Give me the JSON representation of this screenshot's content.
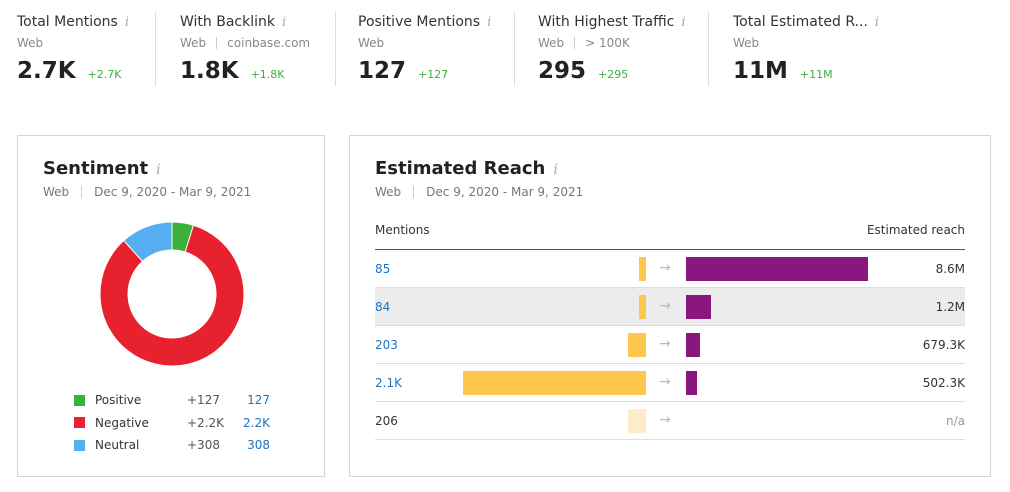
{
  "metrics": [
    {
      "title": "Total Mentions",
      "sub": [
        "Web"
      ],
      "value": "2.7K",
      "delta": "+2.7K"
    },
    {
      "title": "With Backlink",
      "sub": [
        "Web",
        "coinbase.com"
      ],
      "value": "1.8K",
      "delta": "+1.8K"
    },
    {
      "title": "Positive Mentions",
      "sub": [
        "Web"
      ],
      "value": "127",
      "delta": "+127"
    },
    {
      "title": "With Highest Traffic",
      "sub": [
        "Web",
        "> 100K"
      ],
      "value": "295",
      "delta": "+295"
    },
    {
      "title": "Total Estimated R...",
      "sub": [
        "Web"
      ],
      "value": "11M",
      "delta": "+11M"
    }
  ],
  "info_glyph": "i",
  "sentiment": {
    "title": "Sentiment",
    "source": "Web",
    "date_range": "Dec 9, 2020 - Mar 9, 2021",
    "items": [
      {
        "label": "Positive",
        "delta": "+127",
        "value": "127",
        "count": 127,
        "color": "#3cb13a"
      },
      {
        "label": "Negative",
        "delta": "+2.2K",
        "value": "2.2K",
        "count": 2200,
        "color": "#e8212e"
      },
      {
        "label": "Neutral",
        "delta": "+308",
        "value": "308",
        "count": 308,
        "color": "#55aef0"
      }
    ]
  },
  "reach": {
    "title": "Estimated Reach",
    "source": "Web",
    "date_range": "Dec 9, 2020 - Mar 9, 2021",
    "col_mentions": "Mentions",
    "col_reach": "Estimated reach",
    "arrow": "→",
    "rows": [
      {
        "mentions": "85",
        "mentions_num": 85,
        "reach": "8.6M",
        "reach_num": 8600000,
        "link": true
      },
      {
        "mentions": "84",
        "mentions_num": 84,
        "reach": "1.2M",
        "reach_num": 1200000,
        "link": true,
        "highlight": true
      },
      {
        "mentions": "203",
        "mentions_num": 203,
        "reach": "679.3K",
        "reach_num": 679300,
        "link": true
      },
      {
        "mentions": "2.1K",
        "mentions_num": 2100,
        "reach": "502.3K",
        "reach_num": 502300,
        "link": true
      },
      {
        "mentions": "206",
        "mentions_num": 206,
        "reach": "n/a",
        "reach_num": null,
        "link": false
      }
    ],
    "colors": {
      "mentions": "#fdc74f",
      "mentions_na": "#fdecc6",
      "reach": "#8a177e"
    }
  }
}
